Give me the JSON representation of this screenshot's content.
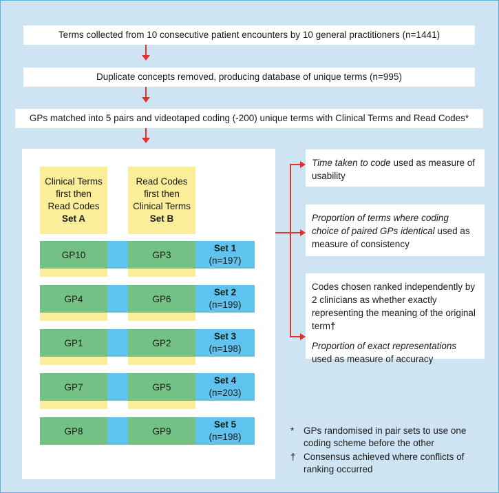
{
  "steps": [
    "Terms collected from 10 consecutive patient encounters by 10 general practitioners (n=1441)",
    "Duplicate concepts removed, producing database of unique terms (n=995)",
    "GPs matched into 5 pairs and videotaped coding (-200) unique terms with Clinical Terms and Read Codes*"
  ],
  "columns": [
    {
      "l1": "Clinical Terms",
      "l2": "first then",
      "l3": "Read Codes",
      "set": "Set A"
    },
    {
      "l1": "Read Codes",
      "l2": "first then",
      "l3": "Clinical Terms",
      "set": "Set B"
    }
  ],
  "rows": [
    {
      "a": "GP10",
      "b": "GP3",
      "set": "Set 1",
      "n": "(n=197)"
    },
    {
      "a": "GP4",
      "b": "GP6",
      "set": "Set 2",
      "n": "(n=199)"
    },
    {
      "a": "GP1",
      "b": "GP2",
      "set": "Set 3",
      "n": "(n=198)"
    },
    {
      "a": "GP7",
      "b": "GP5",
      "set": "Set 4",
      "n": "(n=203)"
    },
    {
      "a": "GP8",
      "b": "GP9",
      "set": "Set 5",
      "n": "(n=198)"
    }
  ],
  "outcomes": {
    "usability": {
      "em": "Time taken to code",
      "rest": " used as measure of usability"
    },
    "consistency": {
      "em": "Proportion of terms where coding choice of paired GPs identical",
      "rest": " used as measure of consistency"
    },
    "accuracy": {
      "p1": "Codes chosen ranked independently by 2 clinicians as whether exactly representing the meaning of the original term",
      "dagger": "†",
      "em": "Proportion of exact representations",
      "rest": " used as measure of accuracy"
    }
  },
  "notes": [
    {
      "mark": "*",
      "text": "GPs randomised in pair sets to use one coding scheme before the other"
    },
    {
      "mark": "†",
      "text": "Consensus achieved where conflicts of ranking occurred"
    }
  ],
  "colors": {
    "background": "#cfe4f2",
    "arrow": "#e0312b",
    "gp_box": "#74c186",
    "set_row": "#5ec4ee",
    "header": "#fbee9a"
  }
}
